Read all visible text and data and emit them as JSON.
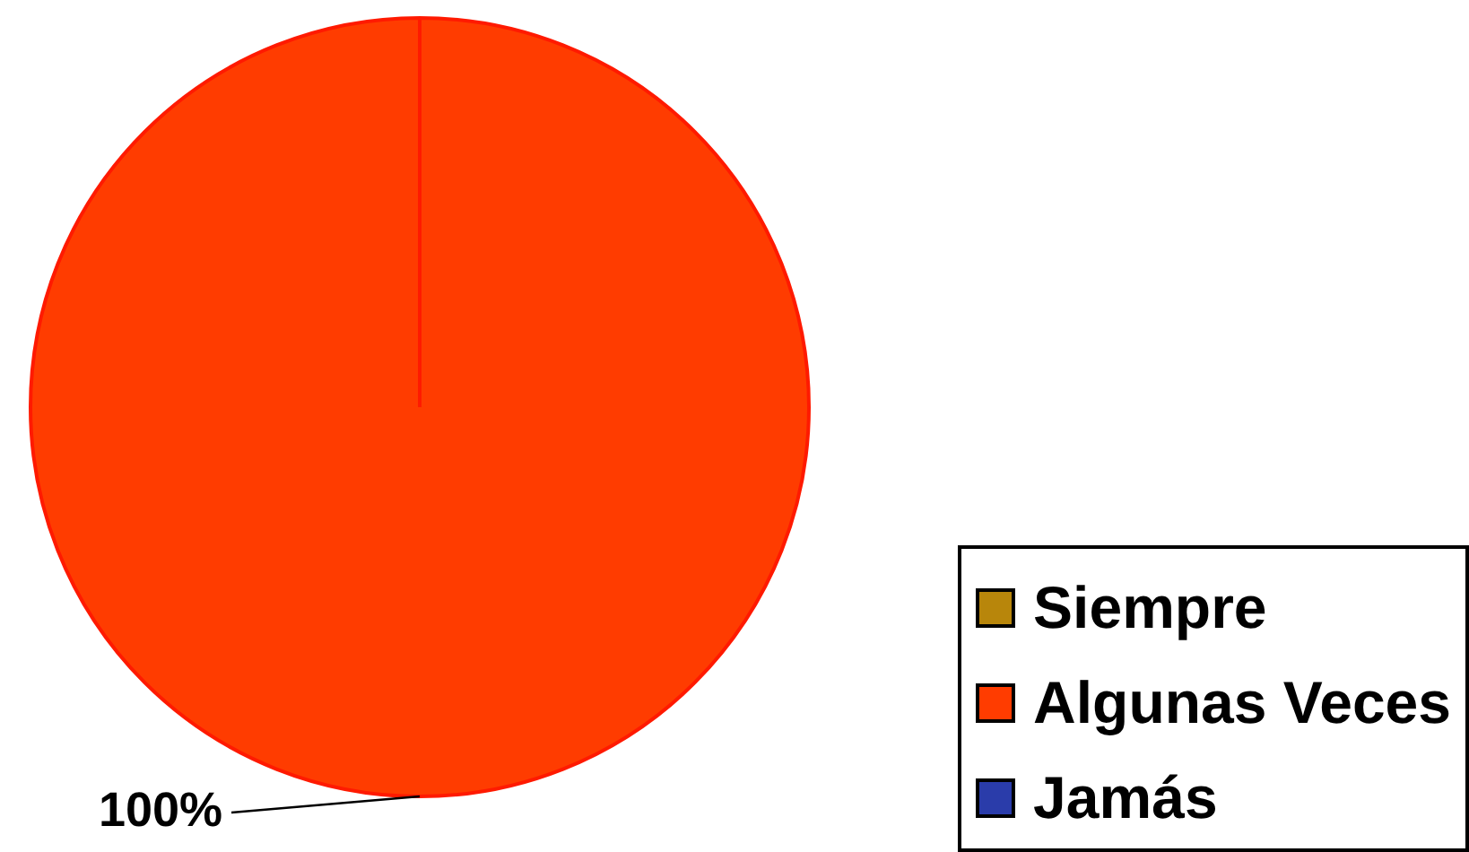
{
  "chart_data": {
    "type": "pie",
    "categories": [
      "Siempre",
      "Algunas Veces",
      "Jamás"
    ],
    "values": [
      0,
      100,
      0
    ],
    "colors": [
      "#b8860b",
      "#ff3c00",
      "#2a3caa"
    ],
    "value_labels": [
      null,
      "100%",
      null
    ],
    "legend": "bottom right"
  }
}
